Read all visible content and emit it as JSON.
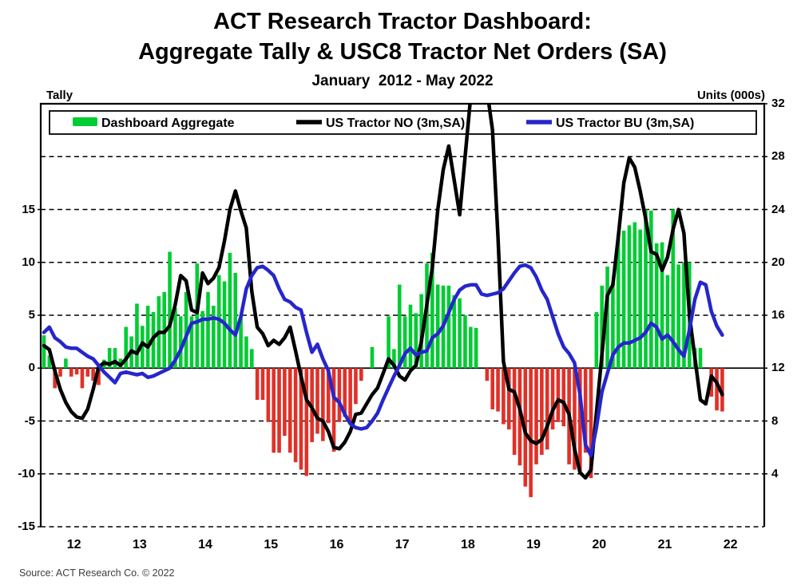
{
  "header": {
    "title_line1": "ACT Research Tractor Dashboard:",
    "title_line2": "Aggregate Tally & USC8 Tractor Net Orders (SA)",
    "subtitle": "January  2012 - May 2022"
  },
  "footer": {
    "source": "Source: ACT Research Co. © 2022"
  },
  "chart_data": {
    "type": "combo-bar-line",
    "title": "ACT Research Tractor Dashboard: Aggregate Tally & USC8 Tractor Net Orders (SA)",
    "subtitle": "January 2012 - May 2022",
    "grid": "dashed horizontal",
    "legend_position": "top inside, full-width box",
    "x_axis": {
      "start": "2012-01",
      "end": "2022-05",
      "months": 125,
      "tick_labels": [
        "12",
        "13",
        "14",
        "15",
        "16",
        "17",
        "18",
        "19",
        "20",
        "21",
        "22"
      ]
    },
    "left_axis": {
      "caption": "Tally",
      "ticks": [
        15,
        10,
        5,
        0,
        -5,
        -10,
        -15
      ],
      "range": [
        -15,
        25
      ]
    },
    "right_axis": {
      "caption": "Units (000s)",
      "ticks": [
        32,
        28,
        24,
        20,
        16,
        12,
        8,
        4
      ],
      "range": [
        0,
        32
      ],
      "zero_reference_line": 12
    },
    "bars": {
      "name": "Dashboard Aggregate",
      "axis": "left",
      "positive_color": "#00cc33",
      "negative_color": "#e03128",
      "values": [
        3.1,
        1.2,
        -1.9,
        -0.8,
        0.9,
        -0.8,
        -0.6,
        -1.9,
        -0.8,
        -1.2,
        -1.6,
        0.8,
        1.9,
        1.9,
        0.9,
        3.9,
        3.0,
        6.1,
        4.0,
        5.9,
        5.3,
        6.8,
        7.2,
        11.0,
        5.7,
        4.9,
        7.2,
        4.9,
        9.9,
        5.4,
        7.2,
        5.9,
        8.8,
        8.2,
        10.9,
        9.0,
        4.9,
        3.0,
        1.8,
        -3.0,
        -3.0,
        -5.1,
        -8.0,
        -8.0,
        -6.4,
        -8.0,
        -8.9,
        -9.6,
        -10.2,
        -7.0,
        -6.2,
        -6.9,
        -5.2,
        -7.9,
        -5.1,
        -4.6,
        -5.1,
        -3.4,
        -1.2,
        0,
        2.0,
        0,
        0,
        4.9,
        1.8,
        7.9,
        4.9,
        6.0,
        5.2,
        7.0,
        9.9,
        10.9,
        7.9,
        7.8,
        7.8,
        6.9,
        6.6,
        5.0,
        3.9,
        3.8,
        0,
        -1.2,
        -3.9,
        -4.1,
        -5.3,
        -5.8,
        -8.2,
        -9.2,
        -11.2,
        -12.2,
        -9.1,
        -8.2,
        -7.7,
        -5.8,
        -5.1,
        -5.5,
        -9.1,
        -9.6,
        -9.9,
        -8.0,
        -10.4,
        5.3,
        7.8,
        9.6,
        8.0,
        12.6,
        13.0,
        13.5,
        13.8,
        13.1,
        15.0,
        14.9,
        11.8,
        11.9,
        8.8,
        15.0,
        9.8,
        10.0,
        10.0,
        1.9,
        1.9,
        0,
        -2.7,
        -4.0,
        -4.1
      ]
    },
    "lines": [
      {
        "name": "US Tractor NO (3m,SA)",
        "axis": "right",
        "color": "#000000",
        "values": [
          13.7,
          13.4,
          11.8,
          10.4,
          9.4,
          8.7,
          8.3,
          8.2,
          8.9,
          10.4,
          12.1,
          12.4,
          12.3,
          12.5,
          12.2,
          12.7,
          13.3,
          13.1,
          13.9,
          13.6,
          14.3,
          14.7,
          14.7,
          15.2,
          16.8,
          19.0,
          18.6,
          16.4,
          16.2,
          19.2,
          18.4,
          18.8,
          19.6,
          21.6,
          24.0,
          25.4,
          23.9,
          22.6,
          17.8,
          15.1,
          14.6,
          13.7,
          14.1,
          13.8,
          14.3,
          15.1,
          13.3,
          11.4,
          9.6,
          9.0,
          8.2,
          8.0,
          7.2,
          6.0,
          5.9,
          6.4,
          7.2,
          8.5,
          8.6,
          9.3,
          10.0,
          10.5,
          11.6,
          12.7,
          12.2,
          11.4,
          11.1,
          11.8,
          12.2,
          14.0,
          16.8,
          19.6,
          24.0,
          27.0,
          28.8,
          26.2,
          23.6,
          28.0,
          32.5,
          34.5,
          34.0,
          33.0,
          30.0,
          22.0,
          12.5,
          10.4,
          10.2,
          8.9,
          7.1,
          6.5,
          6.3,
          6.6,
          7.6,
          8.8,
          9.6,
          9.4,
          8.5,
          5.9,
          4.1,
          3.7,
          4.3,
          8.6,
          13.0,
          17.5,
          18.3,
          22.0,
          26.0,
          27.9,
          27.2,
          25.4,
          23.3,
          20.8,
          20.6,
          19.4,
          20.4,
          22.5,
          24.0,
          22.2,
          16.0,
          12.8,
          9.6,
          9.3,
          11.4,
          10.9,
          10.0
        ]
      },
      {
        "name": "US Tractor BU (3m,SA)",
        "axis": "right",
        "color": "#2626cc",
        "values": [
          14.7,
          15.1,
          14.3,
          14.0,
          13.6,
          13.5,
          13.5,
          13.2,
          12.9,
          12.7,
          12.2,
          11.7,
          11.3,
          10.9,
          11.6,
          11.7,
          11.6,
          11.5,
          11.6,
          11.3,
          11.4,
          11.6,
          11.8,
          12.0,
          12.6,
          13.4,
          14.4,
          15.4,
          15.5,
          15.7,
          15.7,
          15.8,
          15.7,
          15.4,
          14.9,
          14.5,
          15.9,
          18.0,
          19.0,
          19.6,
          19.7,
          19.4,
          19.0,
          18.0,
          17.2,
          17.0,
          16.6,
          16.4,
          14.7,
          13.2,
          13.8,
          12.7,
          11.8,
          9.8,
          9.4,
          8.5,
          7.8,
          7.5,
          7.4,
          7.5,
          8.0,
          8.6,
          9.6,
          10.5,
          11.4,
          12.2,
          13.1,
          13.5,
          13.0,
          13.2,
          13.3,
          14.3,
          14.6,
          15.2,
          16.2,
          17.2,
          17.9,
          18.2,
          18.3,
          18.3,
          17.6,
          17.5,
          17.6,
          17.7,
          18.0,
          18.6,
          19.2,
          19.7,
          19.8,
          19.6,
          18.9,
          17.9,
          17.2,
          15.9,
          14.6,
          13.6,
          13.1,
          12.4,
          10.0,
          6.2,
          5.4,
          7.5,
          10.2,
          11.6,
          13.0,
          13.6,
          13.9,
          13.9,
          14.1,
          14.3,
          14.7,
          15.4,
          15.1,
          14.2,
          14.5,
          14.0,
          13.4,
          12.9,
          14.9,
          17.2,
          18.5,
          18.3,
          16.3,
          15.2,
          14.5
        ]
      }
    ]
  }
}
